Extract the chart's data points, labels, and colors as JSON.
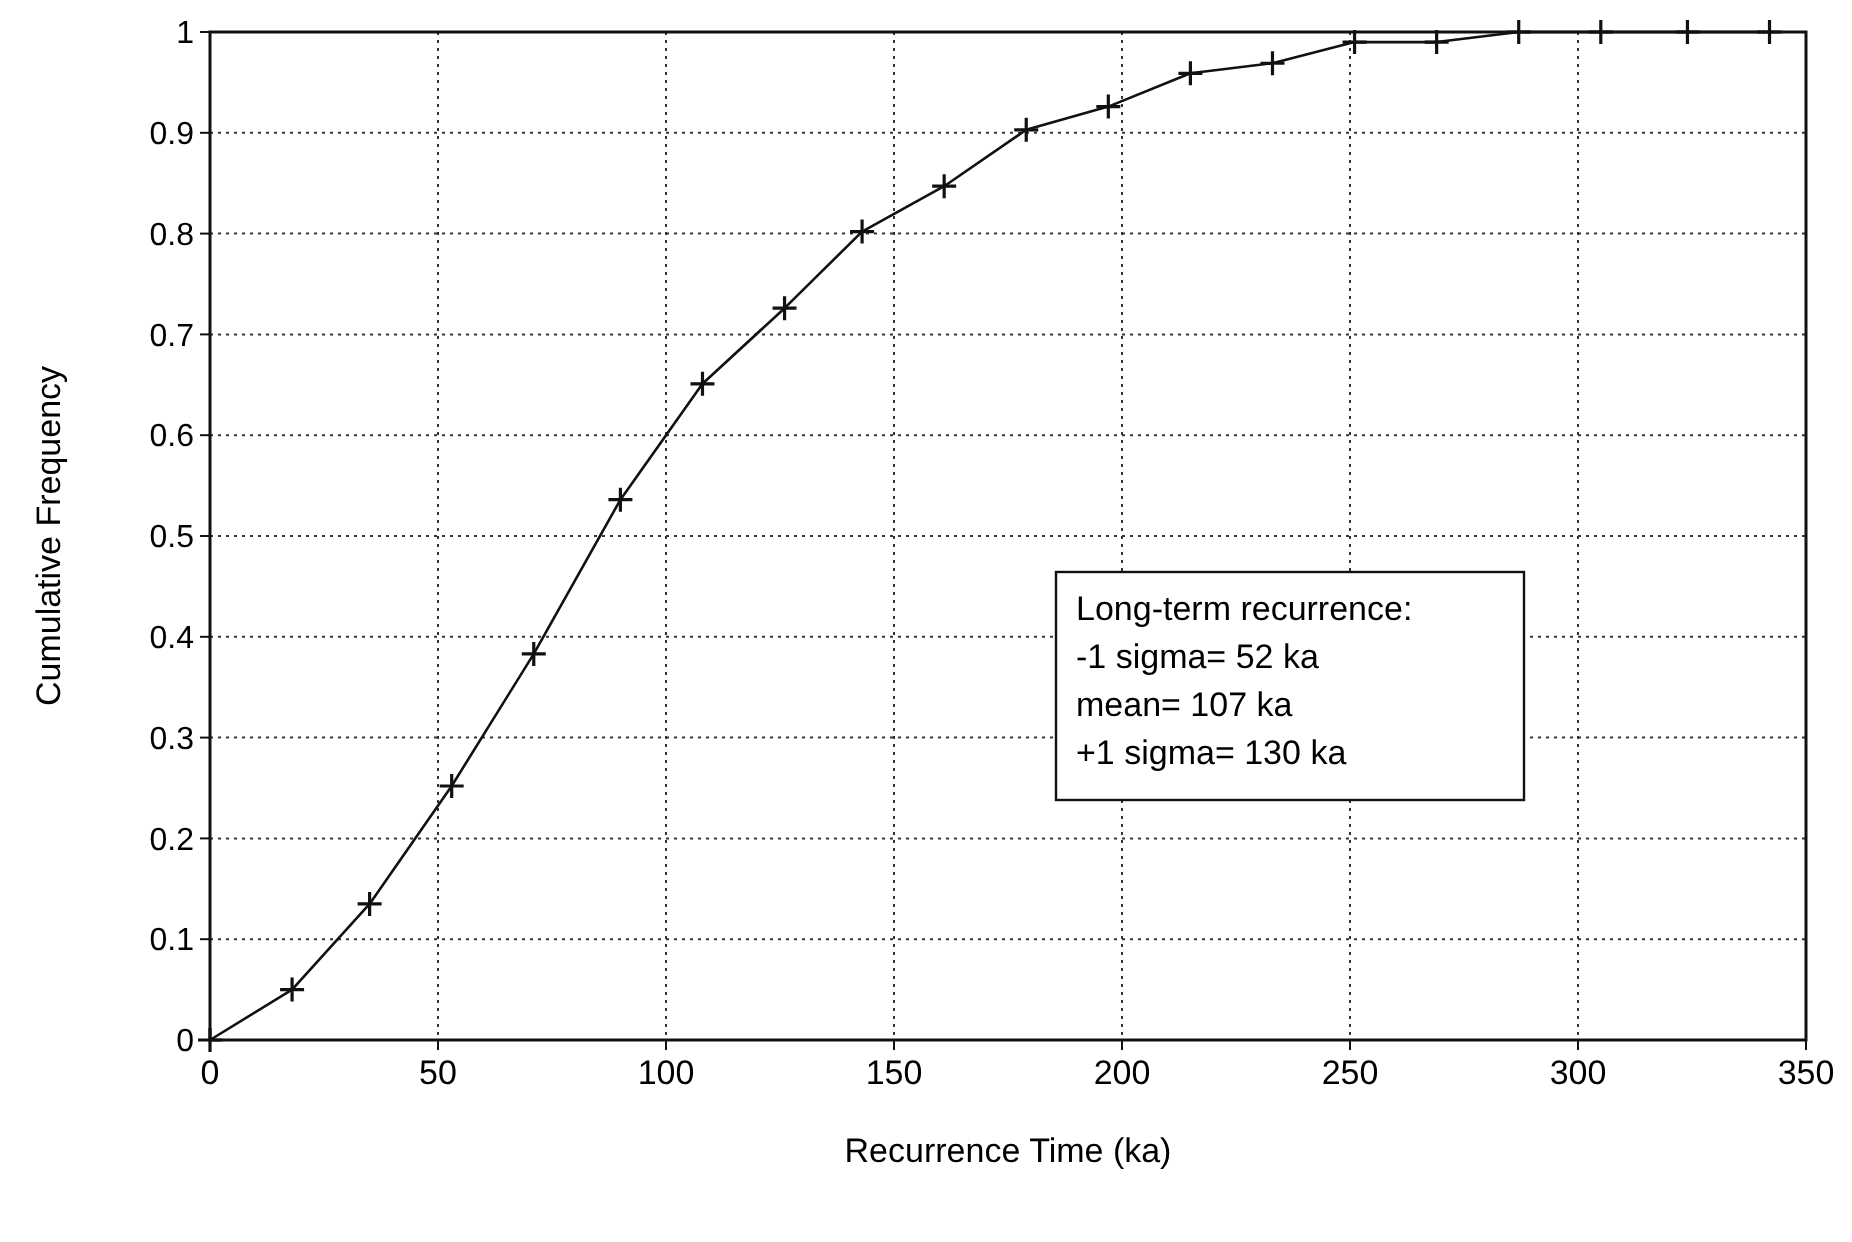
{
  "chart_data": {
    "type": "line",
    "xlabel": "Recurrence Time (ka)",
    "ylabel": "Cumulative Frequency",
    "x": [
      0,
      18,
      35,
      53,
      71,
      90,
      108,
      126,
      143,
      161,
      179,
      197,
      215,
      233,
      251,
      269,
      287,
      305,
      324,
      342
    ],
    "series": [
      {
        "color": "#111111",
        "values": [
          0,
          0.05,
          0.135,
          0.252,
          0.383,
          0.536,
          0.651,
          0.726,
          0.802,
          0.847,
          0.903,
          0.926,
          0.959,
          0.969,
          0.99,
          0.99,
          1,
          1,
          1,
          1
        ]
      }
    ],
    "xlim": [
      0,
      350
    ],
    "xticks": [
      0,
      50,
      100,
      150,
      200,
      250,
      300,
      350
    ],
    "ylim": [
      0,
      1
    ],
    "yticks": [
      0,
      0.1,
      0.2,
      0.3,
      0.4,
      0.5,
      0.6,
      0.7,
      0.8,
      0.9,
      1
    ],
    "grid": true,
    "marker": "cross",
    "line_style": "solid",
    "annotations": [
      "Long-term recurrence:",
      "-1 sigma= 52 ka",
      "mean= 107 ka",
      "+1 sigma= 130 ka"
    ]
  }
}
